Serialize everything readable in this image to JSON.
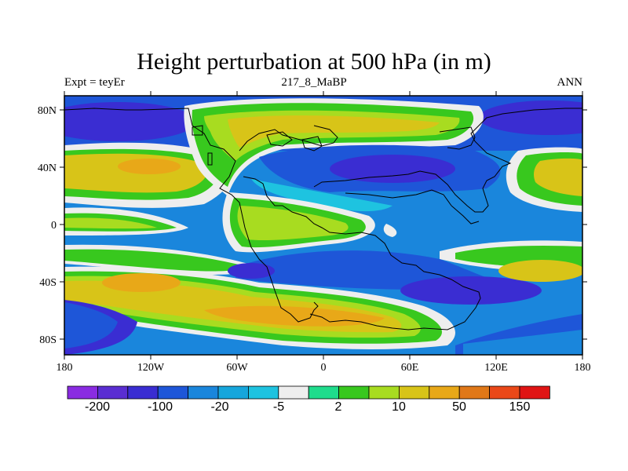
{
  "title": "Height perturbation at 500 hPa (in m)",
  "left_string": "Expt = teyEr",
  "center_string": "217_8_MaBP",
  "right_string": "ANN",
  "axes": {
    "lon_ticks": [
      "180",
      "120W",
      "60W",
      "0",
      "60E",
      "120E",
      "180"
    ],
    "lat_ticks": [
      "80N",
      "40N",
      "0",
      "40S",
      "80S"
    ]
  },
  "colorbar": {
    "colors": [
      "#8a2be2",
      "#5a2ed2",
      "#3a2dd2",
      "#1e56d8",
      "#1a86dc",
      "#16a6dc",
      "#1ec3e0",
      "#eeeeee",
      "#1fdc8c",
      "#38c81e",
      "#a8dc20",
      "#d8c418",
      "#e8a818",
      "#e07818",
      "#ea4818",
      "#e01414"
    ],
    "labels": [
      "-200",
      "-100",
      "-20",
      "-5",
      "2",
      "10",
      "50",
      "150"
    ]
  },
  "field_colors": {
    "deep_blue": "#3a2dd2",
    "blue": "#1e56d8",
    "mid_blue": "#1a86dc",
    "light_blue": "#16a6dc",
    "cyan": "#1ec3e0",
    "white": "#eeeeee",
    "teal": "#1fdc8c",
    "green": "#38c81e",
    "yellow_green": "#a8dc20",
    "yellow": "#d8c418",
    "orange": "#e8a818",
    "dark_orange": "#e07818"
  }
}
